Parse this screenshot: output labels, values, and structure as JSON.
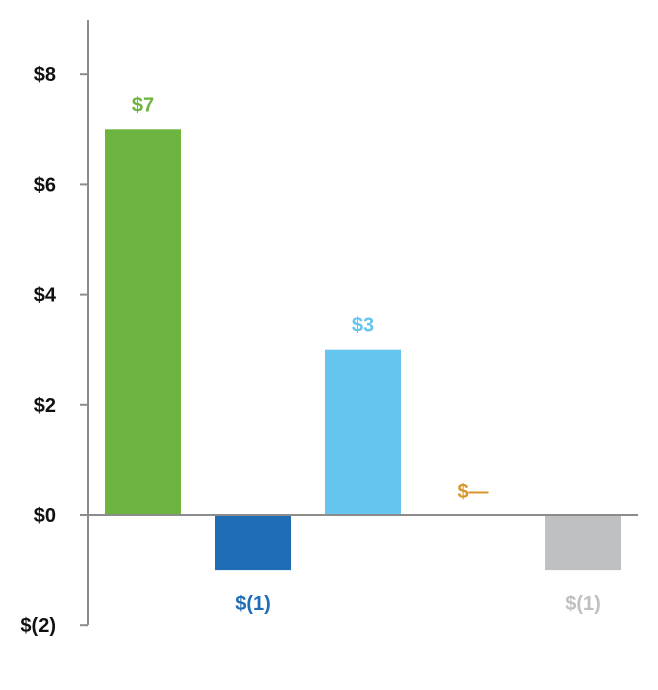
{
  "chart_data": {
    "type": "bar",
    "title": "",
    "xlabel": "",
    "ylabel": "",
    "ylim": [
      -2,
      9
    ],
    "y_ticks": [
      {
        "value": -2,
        "label": "$(2)"
      },
      {
        "value": 0,
        "label": "$0"
      },
      {
        "value": 2,
        "label": "$2"
      },
      {
        "value": 4,
        "label": "$4"
      },
      {
        "value": 6,
        "label": "$6"
      },
      {
        "value": 8,
        "label": "$8"
      }
    ],
    "grid": false,
    "legend": "none",
    "bars": [
      {
        "value": 7,
        "label": "$7",
        "color": "#6DB33F"
      },
      {
        "value": -1,
        "label": "$(1)",
        "color": "#1F6DB5"
      },
      {
        "value": 3,
        "label": "$3",
        "color": "#66C5EE"
      },
      {
        "value": 0,
        "label": "$—",
        "color": "#D9952B"
      },
      {
        "value": -1,
        "label": "$(1)",
        "color": "#BFC0C2"
      }
    ],
    "axis_color": "#8C8C8C"
  }
}
